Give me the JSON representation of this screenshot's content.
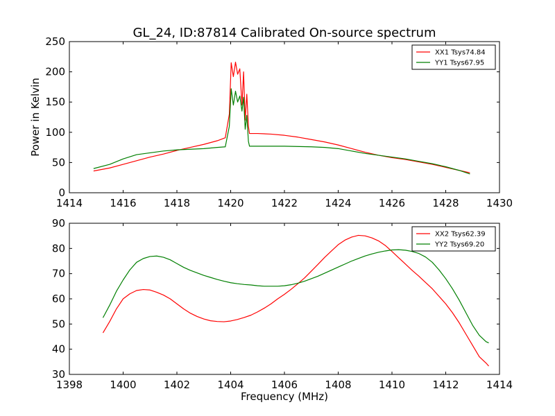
{
  "chart_data": [
    {
      "type": "line",
      "title": "GL_24, ID:87814 Calibrated On-source spectrum",
      "xlabel": "",
      "ylabel": "Power in Kelvin",
      "xlim": [
        1414,
        1430
      ],
      "ylim": [
        0,
        250
      ],
      "xticks": [
        "1414",
        "1416",
        "1418",
        "1420",
        "1422",
        "1424",
        "1426",
        "1428",
        "1430"
      ],
      "yticks": [
        "0",
        "50",
        "100",
        "150",
        "200",
        "250"
      ],
      "legend_position": "top-right",
      "series": [
        {
          "name": "XX1 Tsys74.84",
          "color": "#ff0000",
          "points": [
            [
              1414.9,
              36
            ],
            [
              1415.5,
              41
            ],
            [
              1416,
              47
            ],
            [
              1416.5,
              53
            ],
            [
              1417,
              59
            ],
            [
              1417.5,
              64
            ],
            [
              1418,
              70
            ],
            [
              1418.5,
              75
            ],
            [
              1419,
              80
            ],
            [
              1419.5,
              86
            ],
            [
              1419.8,
              91
            ],
            [
              1419.95,
              130
            ],
            [
              1420.02,
              215
            ],
            [
              1420.1,
              192
            ],
            [
              1420.18,
              216
            ],
            [
              1420.26,
              196
            ],
            [
              1420.34,
              205
            ],
            [
              1420.42,
              145
            ],
            [
              1420.48,
              200
            ],
            [
              1420.54,
              120
            ],
            [
              1420.6,
              163
            ],
            [
              1420.66,
              110
            ],
            [
              1420.7,
              98
            ],
            [
              1421,
              98
            ],
            [
              1421.5,
              97
            ],
            [
              1422,
              95
            ],
            [
              1422.5,
              92
            ],
            [
              1423,
              88
            ],
            [
              1423.5,
              84
            ],
            [
              1424,
              79
            ],
            [
              1424.5,
              73
            ],
            [
              1425,
              67
            ],
            [
              1425.5,
              62
            ],
            [
              1426,
              58
            ],
            [
              1426.5,
              55
            ],
            [
              1427,
              51
            ],
            [
              1427.5,
              47
            ],
            [
              1428,
              42
            ],
            [
              1428.5,
              37
            ],
            [
              1428.9,
              33
            ]
          ]
        },
        {
          "name": "YY1 Tsys67.95",
          "color": "#007f00",
          "points": [
            [
              1414.9,
              40
            ],
            [
              1415.5,
              47
            ],
            [
              1416,
              56
            ],
            [
              1416.5,
              63
            ],
            [
              1417,
              66
            ],
            [
              1417.5,
              69
            ],
            [
              1418,
              71
            ],
            [
              1418.5,
              72
            ],
            [
              1419,
              73
            ],
            [
              1419.5,
              75
            ],
            [
              1419.8,
              76
            ],
            [
              1419.95,
              110
            ],
            [
              1420.02,
              172
            ],
            [
              1420.1,
              145
            ],
            [
              1420.18,
              168
            ],
            [
              1420.26,
              150
            ],
            [
              1420.34,
              160
            ],
            [
              1420.42,
              135
            ],
            [
              1420.48,
              158
            ],
            [
              1420.54,
              105
            ],
            [
              1420.6,
              128
            ],
            [
              1420.66,
              85
            ],
            [
              1420.7,
              77
            ],
            [
              1421,
              77
            ],
            [
              1422,
              77
            ],
            [
              1423,
              76
            ],
            [
              1423.5,
              75
            ],
            [
              1424,
              73
            ],
            [
              1424.5,
              69
            ],
            [
              1425,
              65
            ],
            [
              1425.5,
              62
            ],
            [
              1426,
              59
            ],
            [
              1426.5,
              56
            ],
            [
              1427,
              52
            ],
            [
              1427.5,
              48
            ],
            [
              1428,
              43
            ],
            [
              1428.5,
              37
            ],
            [
              1428.9,
              31
            ]
          ]
        }
      ]
    },
    {
      "type": "line",
      "title": "",
      "xlabel": "Frequency (MHz)",
      "ylabel": "",
      "xlim": [
        1398,
        1414
      ],
      "ylim": [
        30,
        90
      ],
      "xticks": [
        "1398",
        "1400",
        "1402",
        "1404",
        "1406",
        "1408",
        "1410",
        "1412",
        "1414"
      ],
      "yticks": [
        "30",
        "40",
        "50",
        "60",
        "70",
        "80",
        "90"
      ],
      "legend_position": "top-right",
      "series": [
        {
          "name": "XX2 Tsys62.39",
          "color": "#ff0000",
          "points": [
            [
              1399.25,
              46.5
            ],
            [
              1399.5,
              51
            ],
            [
              1399.75,
              56
            ],
            [
              1400,
              60
            ],
            [
              1400.25,
              62
            ],
            [
              1400.5,
              63.3
            ],
            [
              1400.75,
              63.7
            ],
            [
              1401,
              63.5
            ],
            [
              1401.25,
              62.6
            ],
            [
              1401.5,
              61.5
            ],
            [
              1401.75,
              60
            ],
            [
              1402,
              58
            ],
            [
              1402.25,
              56
            ],
            [
              1402.5,
              54.3
            ],
            [
              1402.75,
              53
            ],
            [
              1403,
              52
            ],
            [
              1403.25,
              51.3
            ],
            [
              1403.5,
              51
            ],
            [
              1403.75,
              50.9
            ],
            [
              1404,
              51.2
            ],
            [
              1404.25,
              51.8
            ],
            [
              1404.5,
              52.6
            ],
            [
              1404.75,
              53.5
            ],
            [
              1405,
              54.8
            ],
            [
              1405.25,
              56.3
            ],
            [
              1405.5,
              58
            ],
            [
              1405.75,
              60
            ],
            [
              1406,
              61.8
            ],
            [
              1406.25,
              63.8
            ],
            [
              1406.5,
              66
            ],
            [
              1406.75,
              68.3
            ],
            [
              1407,
              71
            ],
            [
              1407.25,
              73.7
            ],
            [
              1407.5,
              76.5
            ],
            [
              1407.75,
              79
            ],
            [
              1408,
              81.5
            ],
            [
              1408.25,
              83.3
            ],
            [
              1408.5,
              84.5
            ],
            [
              1408.75,
              85.2
            ],
            [
              1409,
              85
            ],
            [
              1409.25,
              84.2
            ],
            [
              1409.5,
              83
            ],
            [
              1409.75,
              81.2
            ],
            [
              1410,
              78.8
            ],
            [
              1410.25,
              76.3
            ],
            [
              1410.5,
              73.8
            ],
            [
              1410.75,
              71.3
            ],
            [
              1411,
              69
            ],
            [
              1411.25,
              66.5
            ],
            [
              1411.5,
              64
            ],
            [
              1411.75,
              61
            ],
            [
              1412,
              58
            ],
            [
              1412.25,
              54.5
            ],
            [
              1412.5,
              50.5
            ],
            [
              1412.75,
              46
            ],
            [
              1413,
              41.5
            ],
            [
              1413.25,
              37
            ],
            [
              1413.5,
              34.5
            ],
            [
              1413.6,
              33.3
            ]
          ]
        },
        {
          "name": "YY2 Tsys69.20",
          "color": "#007f00",
          "points": [
            [
              1399.25,
              52.5
            ],
            [
              1399.5,
              57.5
            ],
            [
              1399.75,
              63
            ],
            [
              1400,
              67.5
            ],
            [
              1400.25,
              71.5
            ],
            [
              1400.5,
              74.5
            ],
            [
              1400.75,
              76
            ],
            [
              1401,
              76.8
            ],
            [
              1401.25,
              77
            ],
            [
              1401.5,
              76.5
            ],
            [
              1401.75,
              75.5
            ],
            [
              1402,
              74
            ],
            [
              1402.25,
              72.5
            ],
            [
              1402.5,
              71.3
            ],
            [
              1402.75,
              70.3
            ],
            [
              1403,
              69.3
            ],
            [
              1403.25,
              68.5
            ],
            [
              1403.5,
              67.7
            ],
            [
              1403.75,
              67
            ],
            [
              1404,
              66.4
            ],
            [
              1404.25,
              66
            ],
            [
              1404.5,
              65.7
            ],
            [
              1404.75,
              65.5
            ],
            [
              1405,
              65.2
            ],
            [
              1405.25,
              65
            ],
            [
              1405.5,
              65
            ],
            [
              1405.75,
              65
            ],
            [
              1406,
              65.2
            ],
            [
              1406.25,
              65.6
            ],
            [
              1406.5,
              66.2
            ],
            [
              1406.75,
              67
            ],
            [
              1407,
              68
            ],
            [
              1407.25,
              69
            ],
            [
              1407.5,
              70.2
            ],
            [
              1407.75,
              71.4
            ],
            [
              1408,
              72.6
            ],
            [
              1408.25,
              73.8
            ],
            [
              1408.5,
              75
            ],
            [
              1408.75,
              76
            ],
            [
              1409,
              77
            ],
            [
              1409.25,
              77.8
            ],
            [
              1409.5,
              78.5
            ],
            [
              1409.75,
              79
            ],
            [
              1410,
              79.4
            ],
            [
              1410.25,
              79.5
            ],
            [
              1410.5,
              79.3
            ],
            [
              1410.75,
              78.8
            ],
            [
              1411,
              78
            ],
            [
              1411.25,
              76.6
            ],
            [
              1411.5,
              74.5
            ],
            [
              1411.75,
              71.5
            ],
            [
              1412,
              68
            ],
            [
              1412.25,
              64
            ],
            [
              1412.5,
              59.5
            ],
            [
              1412.75,
              54.5
            ],
            [
              1413,
              49.5
            ],
            [
              1413.25,
              45.5
            ],
            [
              1413.5,
              43
            ],
            [
              1413.6,
              42.5
            ]
          ]
        }
      ]
    }
  ]
}
